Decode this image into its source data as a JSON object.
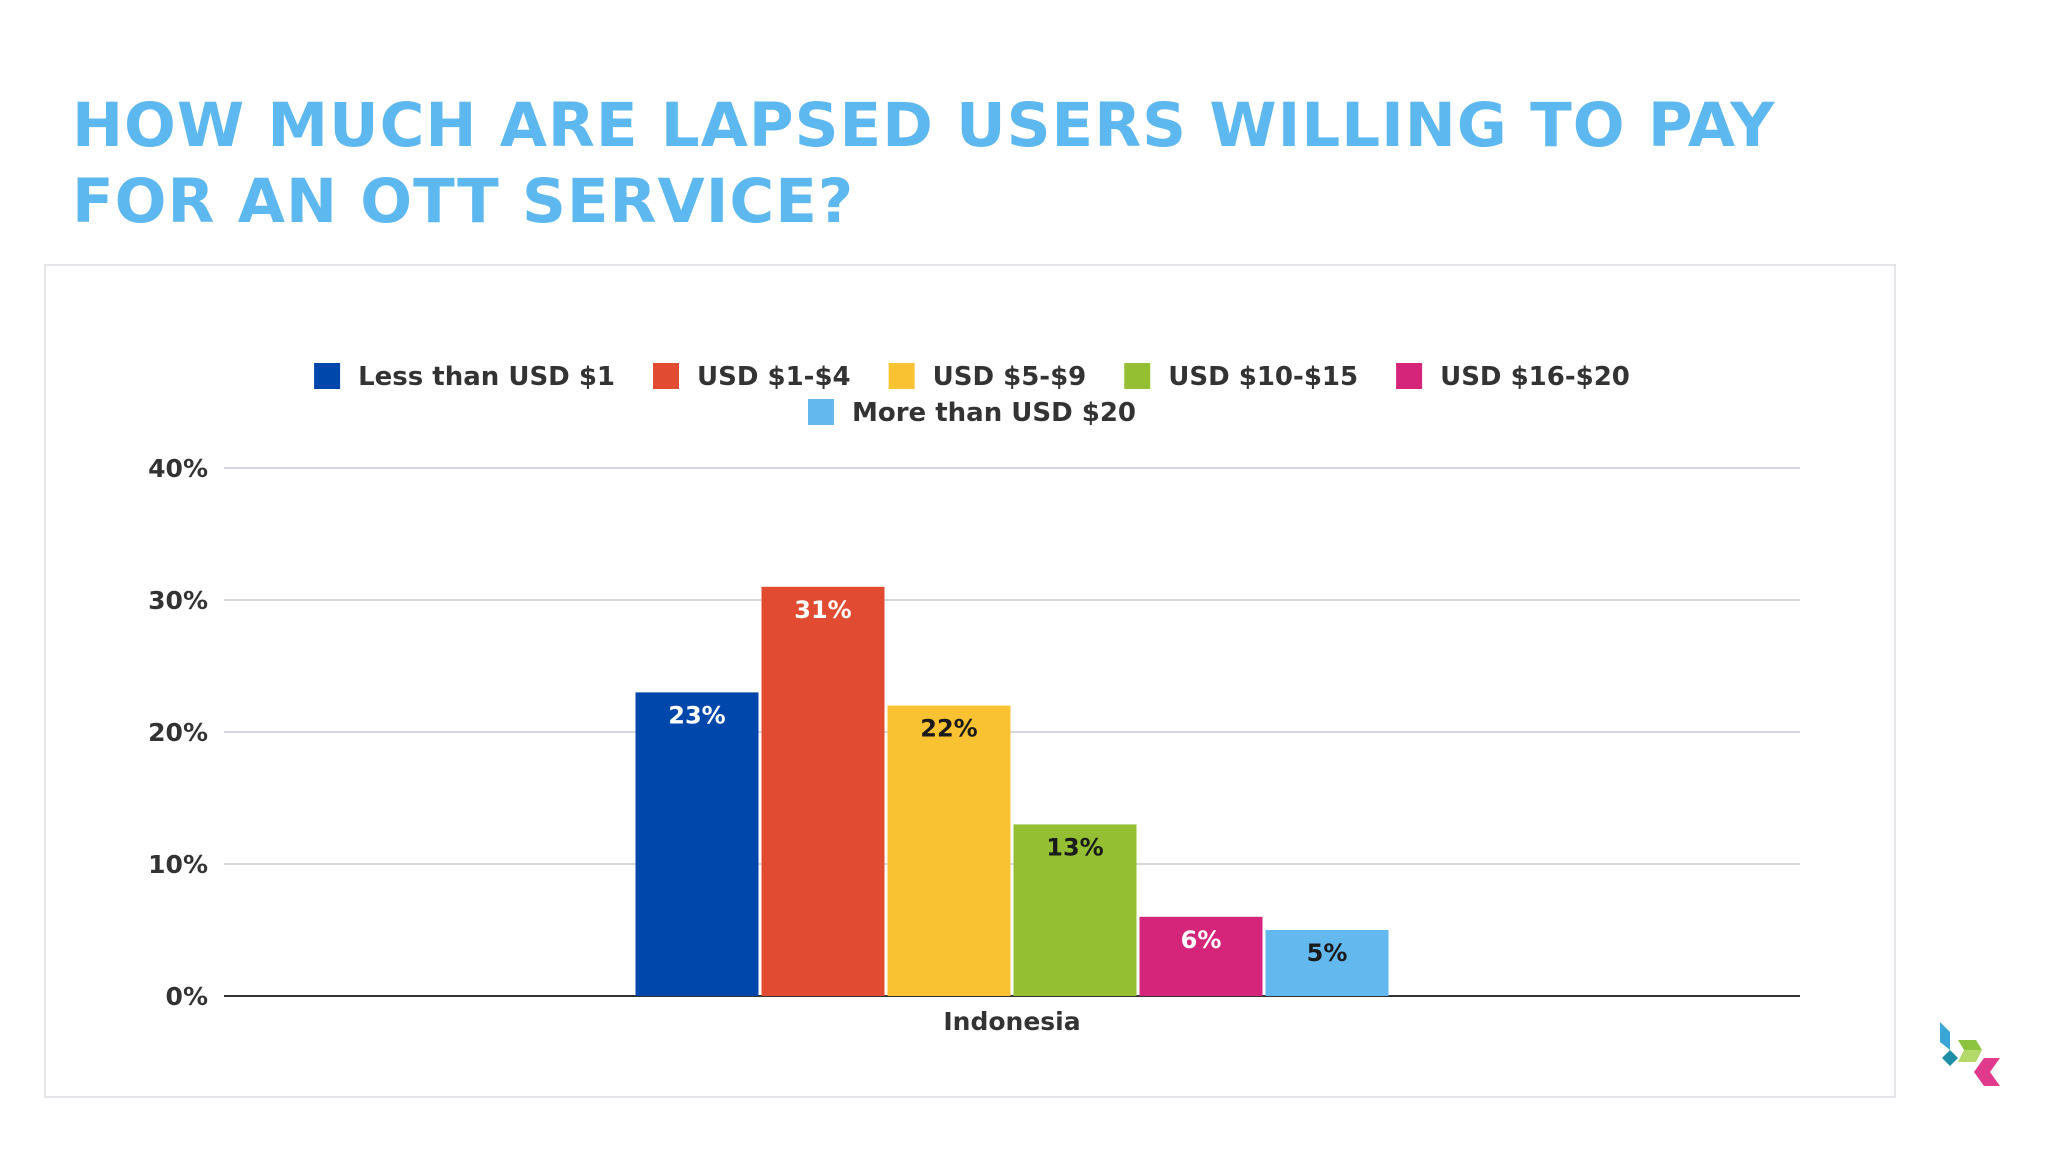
{
  "slide": {
    "title_line1": "HOW MUCH ARE LAPSED USERS WILLING TO PAY",
    "title_line2": "FOR AN OTT SERVICE?",
    "title_color": "#5db8ef"
  },
  "brand": {
    "logo_icon": "cube-chevron-logo-icon",
    "colors": [
      "#3aa6d8",
      "#8cc43f",
      "#e03a8c"
    ]
  },
  "chart_data": {
    "type": "bar",
    "categories": [
      "Indonesia"
    ],
    "series": [
      {
        "name": "Less than USD $1",
        "values": [
          23
        ],
        "label": "23%",
        "color": "#0047ab"
      },
      {
        "name": "USD $1-$4",
        "values": [
          31
        ],
        "label": "31%",
        "color": "#e04b32"
      },
      {
        "name": "USD $5-$9",
        "values": [
          22
        ],
        "label": "22%",
        "color": "#f9c233"
      },
      {
        "name": "USD $10-$15",
        "values": [
          13
        ],
        "label": "13%",
        "color": "#94bf33"
      },
      {
        "name": "USD $16-$20",
        "values": [
          6
        ],
        "label": "6%",
        "color": "#d4257a"
      },
      {
        "name": "More than USD $20",
        "values": [
          5
        ],
        "label": "5%",
        "color": "#63b8ee"
      }
    ],
    "yticks": [
      {
        "value": 0,
        "label": "0%"
      },
      {
        "value": 10,
        "label": "10%"
      },
      {
        "value": 20,
        "label": "20%"
      },
      {
        "value": 30,
        "label": "30%"
      },
      {
        "value": 40,
        "label": "40%"
      }
    ],
    "ylim": [
      0,
      40
    ],
    "grid": true,
    "legend_position": "top",
    "xlabel": "",
    "ylabel": ""
  }
}
